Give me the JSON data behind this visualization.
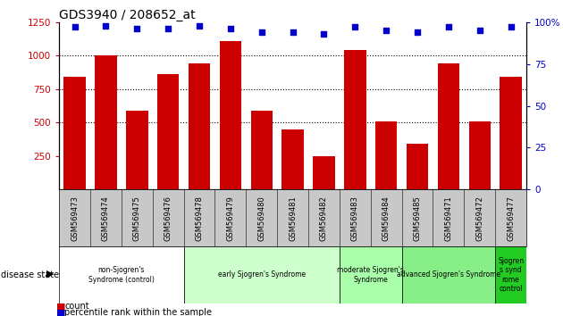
{
  "title": "GDS3940 / 208652_at",
  "samples": [
    "GSM569473",
    "GSM569474",
    "GSM569475",
    "GSM569476",
    "GSM569478",
    "GSM569479",
    "GSM569480",
    "GSM569481",
    "GSM569482",
    "GSM569483",
    "GSM569484",
    "GSM569485",
    "GSM569471",
    "GSM569472",
    "GSM569477"
  ],
  "counts": [
    840,
    1000,
    590,
    860,
    940,
    1110,
    590,
    450,
    250,
    1040,
    510,
    340,
    940,
    510,
    840
  ],
  "percentile_ranks": [
    97,
    98,
    96,
    96,
    98,
    96,
    94,
    94,
    93,
    97,
    95,
    94,
    97,
    95,
    97
  ],
  "ylim_left": [
    0,
    1250
  ],
  "ylim_right": [
    0,
    100
  ],
  "yticks_left": [
    250,
    500,
    750,
    1000,
    1250
  ],
  "yticks_right": [
    0,
    25,
    50,
    75,
    100
  ],
  "bar_color": "#cc0000",
  "dot_color": "#0000cc",
  "bg_color_gray": "#c8c8c8",
  "groups": [
    {
      "label": "non-Sjogren's\nSyndrome (control)",
      "start": 0,
      "end": 4,
      "color": "#ffffff"
    },
    {
      "label": "early Sjogren's Syndrome",
      "start": 4,
      "end": 9,
      "color": "#ccffcc"
    },
    {
      "label": "moderate Sjogren's\nSyndrome",
      "start": 9,
      "end": 11,
      "color": "#aaffaa"
    },
    {
      "label": "advanced Sjogren's Syndrome",
      "start": 11,
      "end": 14,
      "color": "#88ee88"
    },
    {
      "label": "Sjogren\ns synd\nrome\ncontrol",
      "start": 14,
      "end": 15,
      "color": "#22cc22"
    }
  ]
}
